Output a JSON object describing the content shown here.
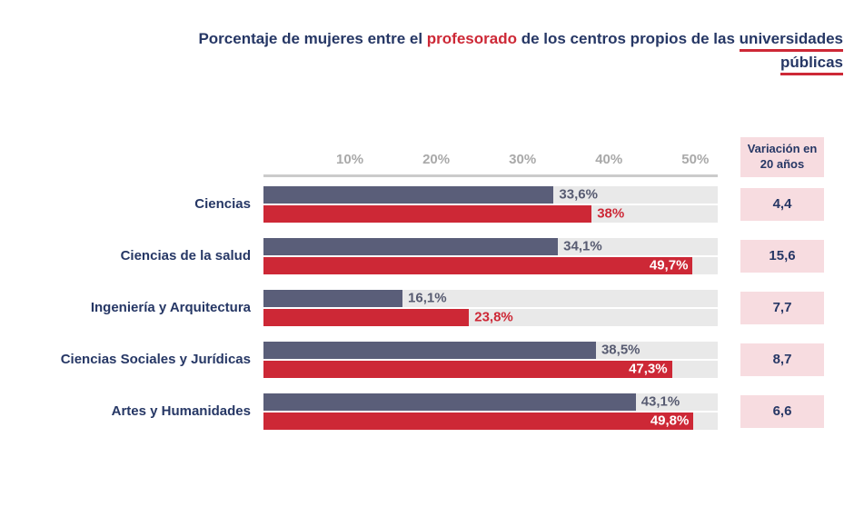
{
  "title": {
    "prefix": "Porcentaje de mujeres entre el ",
    "highlight": "profesorado",
    "middle": " de los centros propios de las ",
    "underlined": "universidades públicas"
  },
  "chart_data": {
    "type": "bar",
    "orientation": "horizontal",
    "title": "Porcentaje de mujeres entre el profesorado de los centros propios de las universidades públicas",
    "categories": [
      "Ciencias",
      "Ciencias de la salud",
      "Ingeniería y Arquitectura",
      "Ciencias Sociales y Jurídicas",
      "Artes y Humanidades"
    ],
    "series": [
      {
        "id": "dark",
        "color": "#5a5e79",
        "label_color": "#575b71",
        "values": [
          33.6,
          34.1,
          16.1,
          38.5,
          43.1
        ],
        "labels": [
          "33,6%",
          "34,1%",
          "16,1%",
          "38,5%",
          "43,1%"
        ],
        "inside_when_over": null
      },
      {
        "id": "red",
        "color": "#cd2836",
        "label_color": "#cd2836",
        "values": [
          38,
          49.7,
          23.8,
          47.3,
          49.8
        ],
        "labels": [
          "38%",
          "49,7%",
          "23,8%",
          "47,3%",
          "49,8%"
        ],
        "inside_when_over": 45
      }
    ],
    "variation_header": "Variación en 20 años",
    "variation_values": [
      "4,4",
      "15,6",
      "7,7",
      "8,7",
      "6,6"
    ],
    "x_tick_labels": [
      "10%",
      "20%",
      "30%",
      "40%",
      "50%"
    ],
    "x_tick_values": [
      10,
      20,
      30,
      40,
      50
    ],
    "xlim": [
      0,
      52.6
    ],
    "grid": false,
    "legend": false,
    "colors": {
      "bar_dark": "#5a5e79",
      "bar_red": "#cd2836",
      "track": "#e9e9e9",
      "pink_box": "#f7dce0",
      "navy_text": "#263765",
      "axis_gray": "#a9a9a9"
    }
  }
}
